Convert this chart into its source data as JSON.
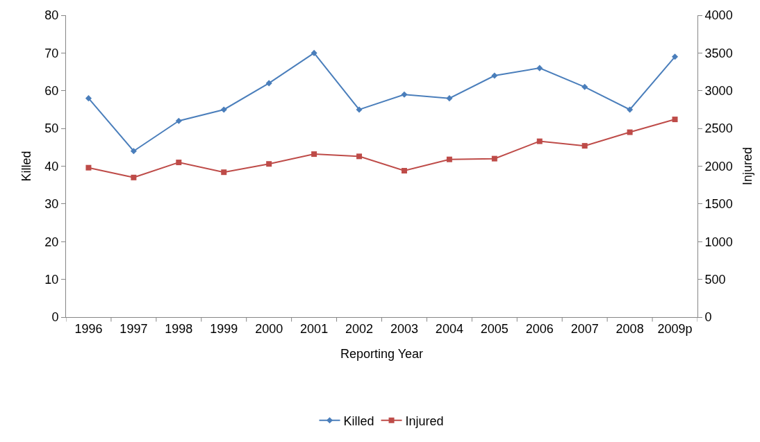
{
  "chart_data": {
    "type": "line",
    "xlabel": "Reporting Year",
    "ylabel": "Killed",
    "y2label": "Injured",
    "categories": [
      "1996",
      "1997",
      "1998",
      "1999",
      "2000",
      "2001",
      "2002",
      "2003",
      "2004",
      "2005",
      "2006",
      "2007",
      "2008",
      "2009p"
    ],
    "series": [
      {
        "name": "Killed",
        "color": "#4a7ebb",
        "marker": "diamond",
        "values": [
          58,
          44,
          52,
          55,
          62,
          70,
          55,
          59,
          58,
          64,
          66,
          61,
          55,
          69
        ]
      },
      {
        "name": "Injured",
        "color": "#be4b48",
        "marker": "square",
        "axis": "y2",
        "values": [
          1980,
          1850,
          2050,
          1920,
          2030,
          2160,
          2130,
          1940,
          2090,
          2100,
          2330,
          2270,
          2450,
          2620
        ]
      }
    ],
    "ylim": [
      0,
      80
    ],
    "yticks": [
      0,
      10,
      20,
      30,
      40,
      50,
      60,
      70,
      80
    ],
    "y2lim": [
      0,
      4000
    ],
    "y2ticks": [
      0,
      500,
      1000,
      1500,
      2000,
      2500,
      3000,
      3500,
      4000
    ],
    "legend": "bottom"
  }
}
